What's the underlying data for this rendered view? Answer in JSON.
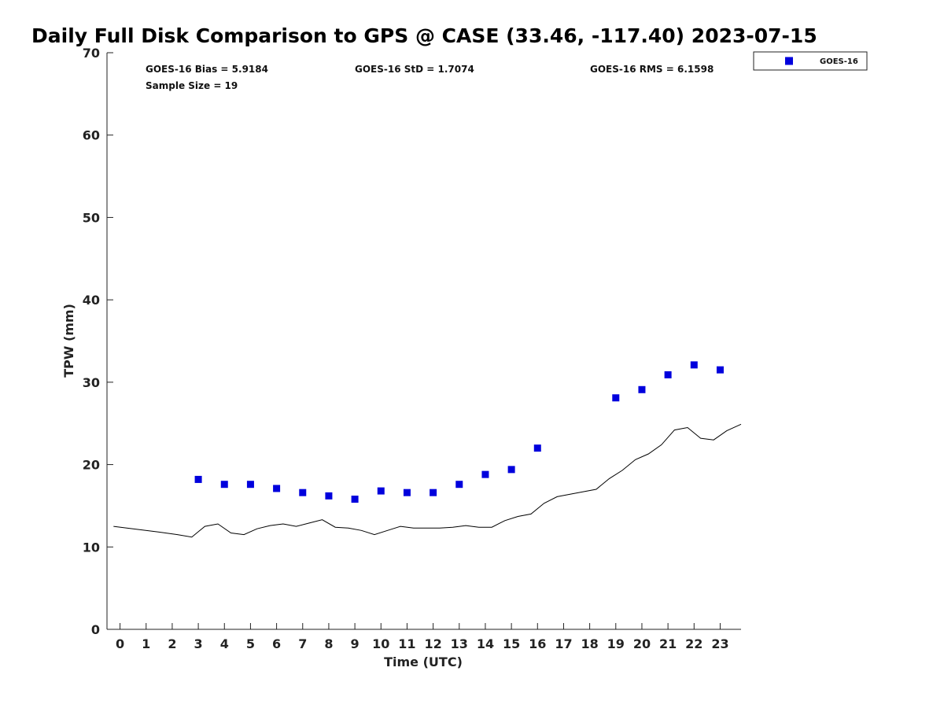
{
  "chart_data": {
    "type": "scatter",
    "title": "Daily Full Disk Comparison to GPS @ CASE (33.46, -117.40) 2023-07-15",
    "xlabel": "Time (UTC)",
    "ylabel": "TPW (mm)",
    "xlim": [
      -0.5,
      23.8
    ],
    "ylim": [
      0,
      70
    ],
    "xticks": [
      "0",
      "1",
      "2",
      "3",
      "4",
      "5",
      "6",
      "7",
      "8",
      "9",
      "10",
      "11",
      "12",
      "13",
      "14",
      "15",
      "16",
      "17",
      "18",
      "19",
      "20",
      "21",
      "22",
      "23"
    ],
    "yticks": [
      "0",
      "10",
      "20",
      "30",
      "40",
      "50",
      "60",
      "70"
    ],
    "grid": false,
    "legend_position": "top-right",
    "stats": {
      "bias": "GOES-16 Bias = 5.9184",
      "std": "GOES-16 StD = 1.7074",
      "rms": "GOES-16 RMS = 6.1598",
      "sample": "Sample Size = 19"
    },
    "series": [
      {
        "name": "GOES-16",
        "kind": "scatter",
        "color": "#0000dd",
        "marker": "square",
        "x": [
          3,
          4,
          5,
          6,
          7,
          8,
          9,
          10,
          11,
          12,
          13,
          14,
          15,
          16,
          19,
          20,
          21,
          22,
          23
        ],
        "y": [
          18.2,
          17.6,
          17.6,
          17.1,
          16.6,
          16.2,
          15.8,
          16.8,
          16.6,
          16.6,
          17.6,
          18.8,
          19.4,
          22.0,
          28.1,
          29.1,
          30.9,
          32.1,
          31.5
        ]
      },
      {
        "kind": "line",
        "color": "#000000",
        "x": [
          -0.25,
          0.5,
          1.5,
          2.2,
          2.75,
          3.25,
          3.75,
          4.25,
          4.75,
          5.25,
          5.75,
          6.25,
          6.75,
          7.25,
          7.75,
          8.25,
          8.75,
          9.25,
          9.75,
          10.25,
          10.75,
          11.25,
          11.75,
          12.25,
          12.75,
          13.25,
          13.75,
          14.25,
          14.75,
          15.25,
          15.75,
          16.25,
          16.75,
          17.25,
          17.75,
          18.25,
          18.75,
          19.25,
          19.75,
          20.25,
          20.75,
          21.25,
          21.75,
          22.25,
          22.75,
          23.25,
          23.8
        ],
        "y": [
          12.5,
          12.2,
          11.8,
          11.5,
          11.2,
          12.5,
          12.8,
          11.7,
          11.5,
          12.2,
          12.6,
          12.8,
          12.5,
          12.9,
          13.3,
          12.4,
          12.3,
          12.0,
          11.5,
          12.0,
          12.5,
          12.3,
          12.3,
          12.3,
          12.4,
          12.6,
          12.4,
          12.4,
          13.2,
          13.7,
          14.0,
          15.3,
          16.1,
          16.4,
          16.7,
          17.0,
          18.3,
          19.3,
          20.6,
          21.3,
          22.4,
          24.2,
          24.5,
          23.2,
          23.0,
          24.1,
          24.9
        ]
      }
    ]
  }
}
